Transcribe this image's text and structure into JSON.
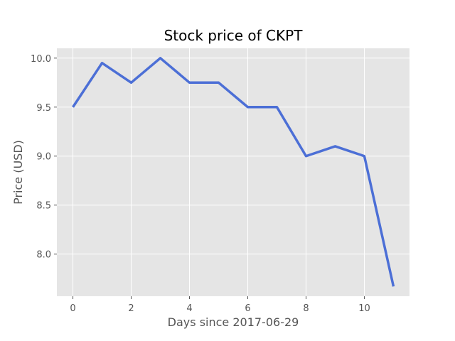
{
  "chart_data": {
    "type": "line",
    "title": "Stock price of CKPT",
    "xlabel": "Days since 2017-06-29",
    "ylabel": "Price (USD)",
    "x": [
      0,
      1,
      2,
      3,
      4,
      5,
      6,
      7,
      8,
      9,
      10,
      11
    ],
    "series": [
      {
        "values": [
          9.5,
          9.95,
          9.75,
          10.0,
          9.75,
          9.75,
          9.5,
          9.5,
          9.0,
          9.1,
          9.0,
          7.67
        ]
      }
    ],
    "xlim": [
      -0.55,
      11.55
    ],
    "ylim": [
      7.57,
      10.1
    ],
    "x_ticks": [
      0,
      2,
      4,
      6,
      8,
      10
    ],
    "x_tick_labels": [
      "0",
      "2",
      "4",
      "6",
      "8",
      "10"
    ],
    "y_ticks": [
      8.0,
      8.5,
      9.0,
      9.5,
      10.0
    ],
    "y_tick_labels": [
      "8.0",
      "8.5",
      "9.0",
      "9.5",
      "10.0"
    ],
    "grid": true,
    "style": "ggplot",
    "colors": {
      "background": "#e5e5e5",
      "grid": "#ffffff",
      "line": "#4c6fd6",
      "tick_mark": "#555555"
    }
  }
}
